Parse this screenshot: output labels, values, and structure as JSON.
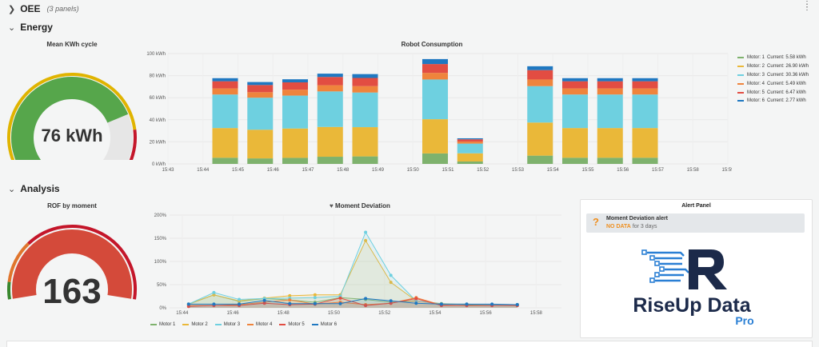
{
  "header": {
    "title": "OEE",
    "panels": "(3 panels)",
    "menu_icon": "vertical-dots-icon"
  },
  "sections": {
    "energy": "Energy",
    "analysis": "Analysis"
  },
  "gauges": {
    "mean_kwh": {
      "title": "Mean KWh cycle",
      "value_text": "76 kWh",
      "value": 76,
      "fill_color": "#56a64b",
      "threshold_colors": [
        "#e0b400",
        "#e0b400",
        "#c4162a"
      ]
    },
    "rof": {
      "title": "ROF by moment",
      "value_text": "163",
      "value": 163,
      "fill_color": "#d44a3a",
      "threshold_colors": [
        "#37872d",
        "#e0752d",
        "#e0752d"
      ]
    }
  },
  "robot_consumption": {
    "title": "Robot Consumption",
    "chart_data": {
      "type": "bar",
      "stacked": true,
      "x_ticks": [
        "15:43",
        "15:44",
        "15:45",
        "15:46",
        "15:47",
        "15:48",
        "15:49",
        "15:50",
        "15:51",
        "15:52",
        "15:53",
        "15:54",
        "15:55",
        "15:56",
        "15:57",
        "15:58",
        "15:59"
      ],
      "y_ticks": [
        "0 kWh",
        "20 kWh",
        "40 kWh",
        "60 kWh",
        "80 kWh",
        "100 kWh"
      ],
      "ylim": [
        0,
        100
      ],
      "categories": [
        "15:45",
        "15:46",
        "15:47",
        "15:48",
        "15:49",
        "15:51",
        "15:52",
        "15:54",
        "15:55",
        "15:56",
        "15:57"
      ],
      "series": [
        {
          "name": "Motor: 1",
          "current": "Current: 5.58 kWh",
          "color": "#7eb26d",
          "values": [
            5.6,
            5,
            5.5,
            6.5,
            6.8,
            9.5,
            2.2,
            7.5,
            5.6,
            5.6,
            5.6
          ]
        },
        {
          "name": "Motor: 2",
          "current": "Current: 26.90 kWh",
          "color": "#eab839",
          "values": [
            26.9,
            26,
            26.6,
            27,
            26.5,
            31,
            7.4,
            30,
            26.9,
            26.9,
            26.9
          ]
        },
        {
          "name": "Motor: 3",
          "current": "Current: 30.36 kWh",
          "color": "#6ed0e0",
          "values": [
            30.4,
            29,
            29.8,
            32.2,
            31.4,
            36,
            8.8,
            33,
            30.4,
            30.4,
            30.4
          ]
        },
        {
          "name": "Motor: 4",
          "current": "Current: 5.49 kWh",
          "color": "#ef843c",
          "values": [
            5.5,
            5,
            5.4,
            5.6,
            5.8,
            6,
            1.8,
            6,
            5.5,
            5.5,
            5.5
          ]
        },
        {
          "name": "Motor: 5",
          "current": "Current: 6.47 kWh",
          "color": "#e24d42",
          "values": [
            6.5,
            6.5,
            6.6,
            7.5,
            7.4,
            8,
            2.1,
            8.5,
            6.5,
            6.5,
            6.5
          ]
        },
        {
          "name": "Motor: 6",
          "current": "Current: 2.77 kWh",
          "color": "#1f78c1",
          "values": [
            2.8,
            2.7,
            2.8,
            3,
            3.5,
            4.5,
            0.9,
            3.5,
            2.8,
            2.8,
            2.8
          ]
        }
      ]
    }
  },
  "moment_deviation": {
    "title": "Moment Deviation",
    "title_icon": "heart-icon",
    "chart_data": {
      "type": "line",
      "x_ticks": [
        "15:44",
        "15:46",
        "15:48",
        "15:50",
        "15:52",
        "15:54",
        "15:56",
        "15:58"
      ],
      "y_ticks": [
        "0%",
        "50%",
        "100%",
        "150%",
        "200%"
      ],
      "ylim": [
        0,
        200
      ],
      "x": [
        "15:44",
        "15:45",
        "15:46",
        "15:47",
        "15:48",
        "15:49",
        "15:50",
        "15:51",
        "15:52",
        "15:53",
        "15:54",
        "15:55",
        "15:56",
        "15:57"
      ],
      "series": [
        {
          "name": "Motor 1",
          "color": "#7eb26d",
          "values": [
            8,
            28,
            14,
            20,
            17,
            12,
            22,
            18,
            12,
            15,
            9,
            7,
            7,
            7
          ]
        },
        {
          "name": "Motor 2",
          "color": "#eab839",
          "values": [
            8,
            28,
            15,
            21,
            26,
            28,
            28,
            145,
            55,
            15,
            8,
            8,
            7,
            7
          ]
        },
        {
          "name": "Motor 3",
          "color": "#6ed0e0",
          "values": [
            8,
            33,
            18,
            20,
            21,
            22,
            25,
            163,
            70,
            15,
            8,
            8,
            7,
            7
          ]
        },
        {
          "name": "Motor 4",
          "color": "#ef843c",
          "values": [
            5,
            5,
            7,
            12,
            17,
            8,
            12,
            7,
            10,
            22,
            6,
            5,
            5,
            5
          ]
        },
        {
          "name": "Motor 5",
          "color": "#e24d42",
          "values": [
            3,
            5,
            5,
            10,
            7,
            8,
            21,
            5,
            10,
            20,
            5,
            5,
            5,
            5
          ]
        },
        {
          "name": "Motor 6",
          "color": "#1f78c1",
          "values": [
            8,
            8,
            8,
            16,
            9,
            9,
            9,
            20,
            15,
            10,
            8,
            8,
            8,
            7
          ]
        }
      ]
    }
  },
  "alert_panel": {
    "title": "Alert Panel",
    "alert_name": "Moment Deviation alert",
    "status": "NO DATA",
    "duration": "for 3 days",
    "status_icon": "question-icon"
  },
  "logo": {
    "text": "RiseUp Data",
    "subtext": "Pro",
    "color_dark": "#1c2a4a",
    "color_blue": "#2a7fd4"
  }
}
